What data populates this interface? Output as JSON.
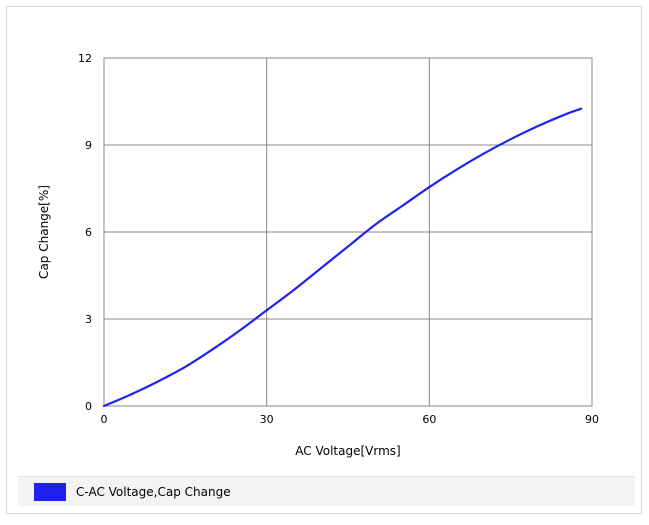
{
  "chart_data": {
    "type": "line",
    "title": "",
    "xlabel": "AC Voltage[Vrms]",
    "ylabel": "Cap Change[%]",
    "xlim": [
      0,
      90
    ],
    "ylim": [
      0,
      12
    ],
    "xticks": [
      0,
      30,
      60,
      90
    ],
    "yticks": [
      0,
      3,
      6,
      9,
      12
    ],
    "grid": true,
    "legend_position": "bottom",
    "series": [
      {
        "name": "C-AC Voltage,Cap Change",
        "color": "#2222ee",
        "x": [
          0,
          5,
          10,
          15,
          20,
          25,
          30,
          35,
          40,
          45,
          50,
          55,
          60,
          65,
          70,
          75,
          80,
          85,
          88
        ],
        "y": [
          0,
          0.4,
          0.85,
          1.35,
          1.95,
          2.6,
          3.3,
          4.0,
          4.75,
          5.5,
          6.25,
          6.9,
          7.55,
          8.15,
          8.7,
          9.2,
          9.65,
          10.05,
          10.25
        ]
      }
    ]
  }
}
